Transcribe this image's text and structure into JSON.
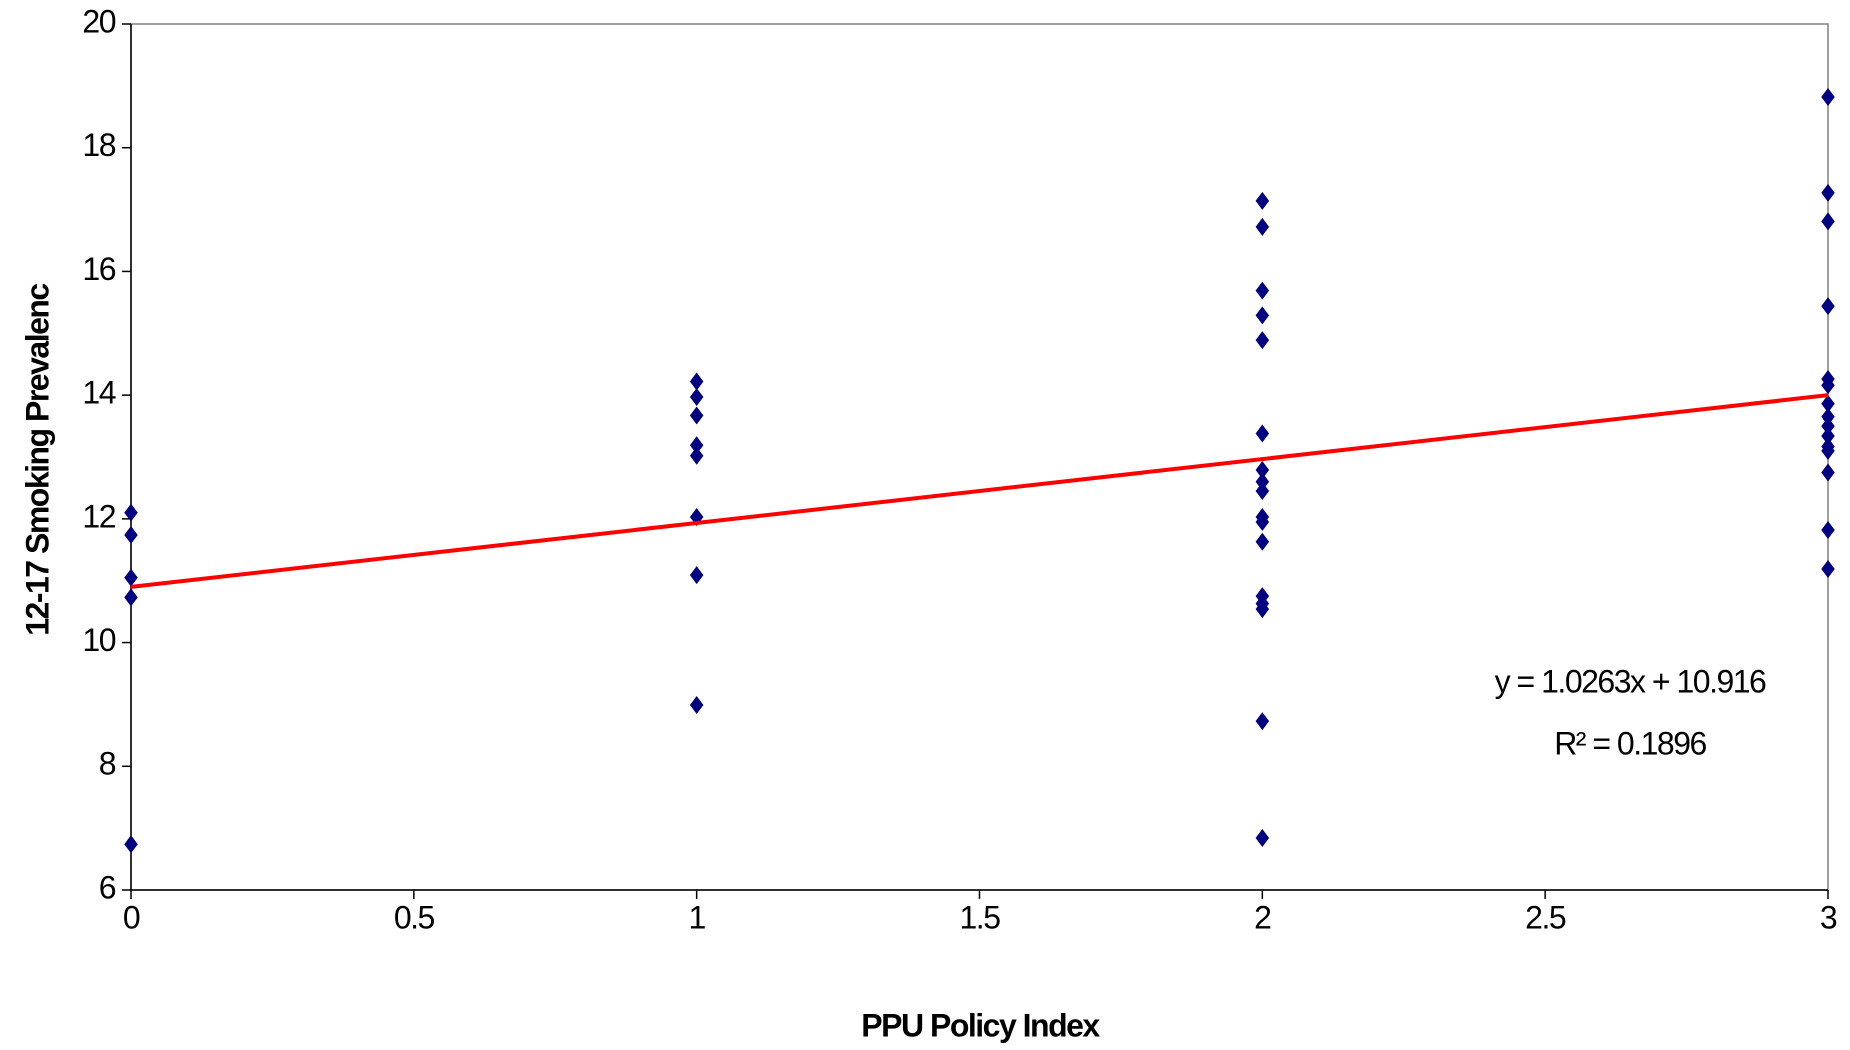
{
  "chart_data": {
    "type": "scatter",
    "xlabel": "PPU Policy Index",
    "ylabel": "12-17 Smoking Prevalenc",
    "xlim": [
      0,
      3
    ],
    "xticks": [
      0,
      0.5,
      1,
      1.5,
      2,
      2.5,
      3
    ],
    "ylim": [
      6,
      20
    ],
    "yticks": [
      6,
      8,
      10,
      12,
      14,
      16,
      18,
      20
    ],
    "grid": false,
    "series": [
      {
        "color": "#000080",
        "x": [
          0,
          0,
          0,
          0,
          0,
          1,
          1,
          1,
          1,
          1,
          1,
          1,
          1,
          2,
          2,
          2,
          2,
          2,
          2,
          2,
          2,
          2,
          2,
          2,
          2,
          2,
          2,
          2,
          2,
          2,
          3,
          3,
          3,
          3,
          3,
          3,
          3,
          3,
          3,
          3,
          3,
          3,
          3,
          3,
          3
        ],
        "values": [
          12.1,
          11.74,
          11.05,
          10.73,
          6.74,
          14.22,
          13.97,
          13.67,
          13.19,
          13.02,
          12.03,
          11.09,
          8.99,
          17.14,
          16.72,
          15.69,
          15.29,
          14.89,
          13.38,
          12.79,
          12.6,
          12.45,
          12.03,
          11.95,
          11.63,
          10.75,
          10.63,
          10.54,
          8.73,
          6.84,
          18.82,
          17.27,
          16.81,
          15.44,
          14.26,
          14.16,
          13.86,
          13.65,
          13.5,
          13.34,
          13.17,
          13.1,
          12.75,
          11.82,
          11.19
        ]
      }
    ],
    "trendline": {
      "color": "#ff0000",
      "x": [
        0,
        3
      ],
      "values": [
        10.9,
        14.0
      ]
    },
    "annotations": [
      "y = 1.0263x + 10.916",
      "R² = 0.1896"
    ]
  }
}
